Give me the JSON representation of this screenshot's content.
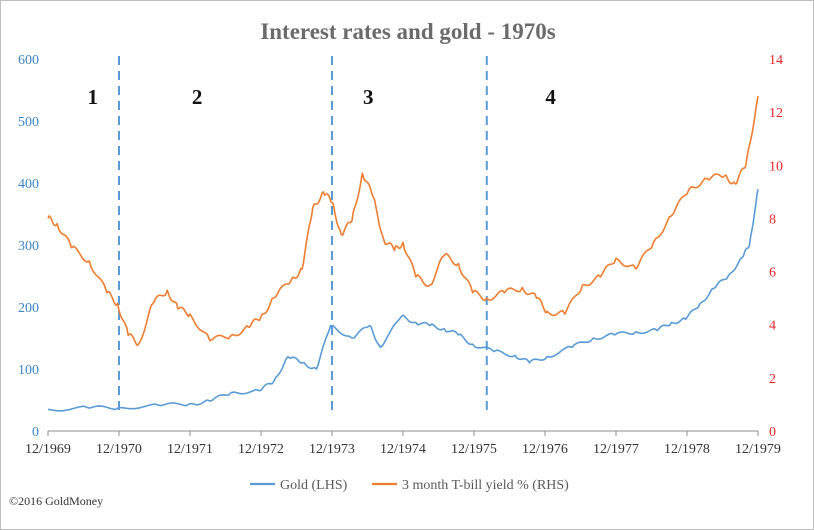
{
  "chart_data": {
    "type": "line",
    "title": "Interest rates and gold - 1970s",
    "x_tick_labels": [
      "12/1969",
      "12/1970",
      "12/1971",
      "12/1972",
      "12/1973",
      "12/1974",
      "12/1975",
      "12/1976",
      "12/1977",
      "12/1978",
      "12/1979"
    ],
    "xlim": [
      1969.92,
      1979.92
    ],
    "y_left": {
      "lim": [
        0,
        600
      ],
      "ticks": [
        0,
        100,
        200,
        300,
        400,
        500,
        600
      ],
      "color": "#3d85c6"
    },
    "y_right": {
      "lim": [
        0,
        14
      ],
      "ticks": [
        0,
        2,
        4,
        6,
        8,
        10,
        12,
        14
      ],
      "color": "#e8262a"
    },
    "legend_position": "bottom",
    "grid": false,
    "series": [
      {
        "name": "Gold (LHS)",
        "axis": "left",
        "color": "#5b9bd5",
        "x": [
          1969.92,
          1970.5,
          1970.92,
          1971.5,
          1971.92,
          1972.2,
          1972.5,
          1972.9,
          1973.1,
          1973.3,
          1973.5,
          1973.7,
          1973.9,
          1974.2,
          1974.45,
          1974.6,
          1974.9,
          1975.1,
          1975.3,
          1975.5,
          1975.7,
          1975.9,
          1976.2,
          1976.5,
          1976.7,
          1976.95,
          1977.3,
          1977.6,
          1977.9,
          1978.2,
          1978.5,
          1978.7,
          1978.9,
          1979.1,
          1979.3,
          1979.5,
          1979.7,
          1979.8,
          1979.92
        ],
        "y": [
          35,
          37,
          38,
          41,
          44,
          48,
          62,
          65,
          80,
          120,
          110,
          100,
          170,
          150,
          170,
          135,
          185,
          175,
          170,
          165,
          155,
          140,
          128,
          122,
          110,
          120,
          135,
          150,
          155,
          160,
          162,
          175,
          180,
          205,
          230,
          250,
          280,
          300,
          390
        ]
      },
      {
        "name": "3 month T-bill yield % (RHS)",
        "axis": "right",
        "color": "#ed7d31",
        "x": [
          1969.92,
          1970.05,
          1970.25,
          1970.5,
          1970.75,
          1970.9,
          1971.05,
          1971.2,
          1971.4,
          1971.6,
          1971.75,
          1971.92,
          1972.2,
          1972.5,
          1972.75,
          1972.92,
          1973.1,
          1973.35,
          1973.5,
          1973.65,
          1973.8,
          1973.92,
          1974.05,
          1974.2,
          1974.35,
          1974.5,
          1974.65,
          1974.8,
          1974.92,
          1975.1,
          1975.3,
          1975.5,
          1975.7,
          1975.9,
          1976.1,
          1976.35,
          1976.6,
          1976.8,
          1976.95,
          1977.2,
          1977.45,
          1977.7,
          1977.92,
          1978.2,
          1978.45,
          1978.7,
          1978.95,
          1979.2,
          1979.45,
          1979.6,
          1979.75,
          1979.92
        ],
        "y": [
          8.0,
          7.8,
          6.9,
          6.4,
          5.2,
          4.8,
          3.6,
          3.3,
          4.8,
          5.3,
          4.6,
          4.4,
          3.4,
          3.6,
          3.9,
          4.3,
          5.0,
          5.7,
          6.1,
          8.4,
          9.0,
          8.6,
          7.4,
          7.9,
          9.7,
          8.8,
          7.2,
          6.8,
          7.1,
          5.8,
          5.5,
          6.6,
          6.3,
          5.2,
          5.0,
          5.2,
          5.4,
          5.0,
          4.5,
          4.4,
          5.5,
          5.8,
          6.5,
          6.1,
          7.1,
          8.1,
          9.1,
          9.5,
          9.6,
          9.3,
          10.0,
          12.6
        ]
      }
    ],
    "annotations": [
      {
        "label": "1",
        "x": 1970.55
      },
      {
        "label": "2",
        "x": 1972.02
      },
      {
        "label": "3",
        "x": 1974.43
      },
      {
        "label": "4",
        "x": 1977.0
      }
    ],
    "dividers_x": [
      1970.92,
      1973.92,
      1976.1
    ]
  },
  "copyright": "©2016 GoldMoney"
}
